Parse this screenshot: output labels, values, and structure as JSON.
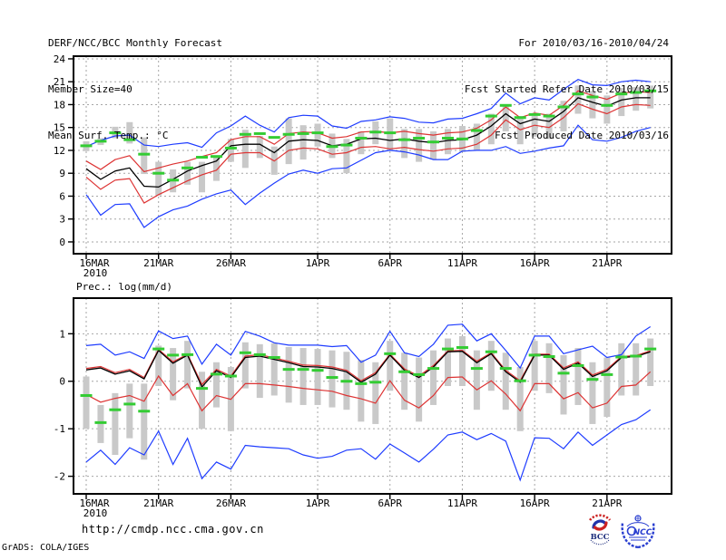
{
  "header": {
    "title": "DERF/NCC/BCC Monthly Forecast",
    "member_size": "Member Size=40",
    "valid_range": "For 2010/03/16-2010/04/24",
    "refer_date": "Fcst Started Refer Date 2010/03/15",
    "produced_date": "Fcst Produced Date 2010/03/16"
  },
  "footer": {
    "url": "http://cmdp.ncc.cma.gov.cn",
    "credit": "GrADS: COLA/IGES",
    "bcc_label": "BCC",
    "ncc_label": "NCC"
  },
  "colors": {
    "extreme_line": "#1e3cff",
    "quartile_line": "#dd3333",
    "mean_line": "#000000",
    "obs_dash": "#33cc33",
    "spread_bar": "#c9c9c9",
    "grid": "#a6a6a6",
    "frame": "#000000"
  },
  "chart_data": [
    {
      "type": "line",
      "title": "Mean Surf. Temp.: °C",
      "start_date": "16MAR2010",
      "ylim": [
        -1.55,
        24.35
      ],
      "y_ticks": [
        0,
        3,
        6,
        9,
        12,
        15,
        18,
        21,
        24
      ],
      "x_ticks": [
        {
          "day": 1,
          "label": "16MAR",
          "sub": "2010"
        },
        {
          "day": 6,
          "label": "21MAR"
        },
        {
          "day": 11,
          "label": "26MAR"
        },
        {
          "day": 17,
          "label": "1APR"
        },
        {
          "day": 22,
          "label": "6APR"
        },
        {
          "day": 27,
          "label": "11APR"
        },
        {
          "day": 32,
          "label": "16APR"
        },
        {
          "day": 37,
          "label": "21APR"
        }
      ],
      "n_days": 40,
      "series": [
        {
          "name": "ensemble-max",
          "color": "#1e3cff",
          "values": [
            12.5,
            13.3,
            13.9,
            14.0,
            12.7,
            12.5,
            12.8,
            13.0,
            12.4,
            14.3,
            15.2,
            16.5,
            15.3,
            14.4,
            16.3,
            16.6,
            16.5,
            15.2,
            14.9,
            15.8,
            16.0,
            16.4,
            16.2,
            15.7,
            15.6,
            16.1,
            16.2,
            16.8,
            17.5,
            19.5,
            18.1,
            18.9,
            18.6,
            20.0,
            21.3,
            20.6,
            20.5,
            21.0,
            21.2,
            21.0
          ]
        },
        {
          "name": "ensemble-upper-quartile",
          "color": "#dd3333",
          "values": [
            10.6,
            9.5,
            10.8,
            11.3,
            9.2,
            9.7,
            10.2,
            10.6,
            11.2,
            11.7,
            13.4,
            13.8,
            13.8,
            12.8,
            14.2,
            14.4,
            14.3,
            13.6,
            13.8,
            14.4,
            14.5,
            14.3,
            14.5,
            14.2,
            14.0,
            14.3,
            14.4,
            14.9,
            16.0,
            17.7,
            16.3,
            16.9,
            16.6,
            17.9,
            19.8,
            19.2,
            18.7,
            19.5,
            19.7,
            19.6
          ]
        },
        {
          "name": "ensemble-mean",
          "color": "#000000",
          "values": [
            9.6,
            8.2,
            9.3,
            9.7,
            7.3,
            7.2,
            8.2,
            9.3,
            10.0,
            10.6,
            12.6,
            12.8,
            12.8,
            11.7,
            13.2,
            13.4,
            13.3,
            12.6,
            12.8,
            13.5,
            13.6,
            13.3,
            13.5,
            13.2,
            13.0,
            13.3,
            13.4,
            14.0,
            15.2,
            16.8,
            15.5,
            16.1,
            15.8,
            17.1,
            18.9,
            18.3,
            17.8,
            18.6,
            18.9,
            18.9
          ]
        },
        {
          "name": "ensemble-lower-quartile",
          "color": "#dd3333",
          "values": [
            8.5,
            6.9,
            8.1,
            8.3,
            5.1,
            6.2,
            7.1,
            8.0,
            8.8,
            9.4,
            11.5,
            11.7,
            11.7,
            10.6,
            12.0,
            12.3,
            12.2,
            11.5,
            11.7,
            12.4,
            12.5,
            12.2,
            12.4,
            12.1,
            11.9,
            12.2,
            12.3,
            12.8,
            14.0,
            16.0,
            14.7,
            15.3,
            15.0,
            16.3,
            18.1,
            17.4,
            16.8,
            17.7,
            18.0,
            17.9
          ]
        },
        {
          "name": "ensemble-min",
          "color": "#1e3cff",
          "values": [
            6.2,
            3.5,
            4.9,
            5.0,
            1.9,
            3.3,
            4.2,
            4.7,
            5.6,
            6.3,
            6.8,
            4.9,
            6.4,
            7.7,
            8.9,
            9.4,
            9.0,
            9.6,
            9.7,
            10.7,
            11.7,
            12.0,
            11.8,
            11.4,
            10.8,
            10.8,
            11.9,
            12.0,
            12.0,
            12.5,
            11.6,
            11.9,
            12.3,
            12.6,
            15.3,
            13.4,
            13.2,
            13.7,
            14.5,
            15.0
          ]
        }
      ],
      "spread_bars": {
        "name": "member-spread",
        "color": "#c9c9c9",
        "lo": [
          11.9,
          12.7,
          13.6,
          12.9,
          8.9,
          6.1,
          6.5,
          7.5,
          6.5,
          8.0,
          10.5,
          9.7,
          11.0,
          8.8,
          10.2,
          10.8,
          12.5,
          11.0,
          9.0,
          11.5,
          12.8,
          12.0,
          11.0,
          10.5,
          10.8,
          11.5,
          11.8,
          12.0,
          12.8,
          14.5,
          12.8,
          13.8,
          13.5,
          14.5,
          16.8,
          16.2,
          15.5,
          16.5,
          17.2,
          17.5
        ],
        "hi": [
          13.2,
          13.6,
          15.1,
          15.7,
          13.7,
          10.5,
          9.5,
          10.5,
          10.5,
          11.3,
          13.5,
          14.7,
          13.9,
          12.5,
          16.2,
          15.3,
          15.5,
          14.2,
          13.5,
          14.5,
          15.8,
          16.2,
          14.8,
          14.8,
          14.5,
          14.8,
          15.2,
          15.5,
          16.8,
          17.8,
          16.5,
          16.5,
          16.8,
          18.5,
          20.5,
          19.8,
          19.2,
          20.2,
          20.3,
          20.5
        ]
      },
      "obs_dashes": {
        "name": "observation",
        "color": "#33cc33",
        "values": [
          12.6,
          13.2,
          14.3,
          13.4,
          11.5,
          9.0,
          8.1,
          9.7,
          11.1,
          11.2,
          12.3,
          14.1,
          14.2,
          13.7,
          14.1,
          14.2,
          14.3,
          12.5,
          12.7,
          13.6,
          14.4,
          14.3,
          13.4,
          13.6,
          13.1,
          13.6,
          13.5,
          14.6,
          16.5,
          17.9,
          16.3,
          16.7,
          16.5,
          17.7,
          19.4,
          19.0,
          17.9,
          19.4,
          19.6,
          19.8
        ]
      }
    },
    {
      "type": "line",
      "title": "Prec.: log(mm/d)",
      "start_date": "16MAR2010",
      "ylim": [
        -2.37,
        1.75
      ],
      "y_ticks": [
        -2,
        -1,
        0,
        1
      ],
      "x_ticks": [
        {
          "day": 1,
          "label": "16MAR",
          "sub": "2010"
        },
        {
          "day": 6,
          "label": "21MAR"
        },
        {
          "day": 11,
          "label": "26MAR"
        },
        {
          "day": 17,
          "label": "1APR"
        },
        {
          "day": 22,
          "label": "6APR"
        },
        {
          "day": 27,
          "label": "11APR"
        },
        {
          "day": 32,
          "label": "16APR"
        },
        {
          "day": 37,
          "label": "21APR"
        }
      ],
      "n_days": 40,
      "series": [
        {
          "name": "ensemble-max",
          "color": "#1e3cff",
          "values": [
            0.75,
            0.78,
            0.55,
            0.62,
            0.48,
            1.06,
            0.9,
            0.95,
            0.36,
            0.78,
            0.55,
            1.05,
            0.95,
            0.81,
            0.76,
            0.76,
            0.76,
            0.73,
            0.75,
            0.4,
            0.55,
            1.05,
            0.6,
            0.52,
            0.78,
            1.18,
            1.2,
            0.85,
            1.0,
            0.65,
            0.28,
            0.95,
            0.95,
            0.58,
            0.66,
            0.74,
            0.5,
            0.56,
            0.95,
            1.15
          ]
        },
        {
          "name": "ensemble-upper-quartile",
          "color": "#dd3333",
          "values": [
            0.27,
            0.31,
            0.18,
            0.25,
            0.08,
            0.67,
            0.41,
            0.57,
            -0.07,
            0.25,
            0.11,
            0.53,
            0.56,
            0.49,
            0.42,
            0.34,
            0.33,
            0.3,
            0.23,
            0.01,
            0.18,
            0.57,
            0.26,
            0.11,
            0.33,
            0.64,
            0.65,
            0.42,
            0.6,
            0.23,
            0.01,
            0.57,
            0.57,
            0.28,
            0.41,
            0.13,
            0.25,
            0.52,
            0.54,
            0.64
          ]
        },
        {
          "name": "ensemble-mean",
          "color": "#000000",
          "values": [
            0.24,
            0.28,
            0.15,
            0.22,
            0.05,
            0.65,
            0.38,
            0.55,
            -0.12,
            0.22,
            0.08,
            0.5,
            0.53,
            0.46,
            0.39,
            0.31,
            0.3,
            0.27,
            0.2,
            -0.02,
            0.15,
            0.55,
            0.23,
            0.08,
            0.3,
            0.62,
            0.63,
            0.39,
            0.58,
            0.2,
            -0.02,
            0.55,
            0.55,
            0.25,
            0.38,
            0.1,
            0.22,
            0.5,
            0.52,
            0.62
          ]
        },
        {
          "name": "ensemble-lower-quartile",
          "color": "#dd3333",
          "values": [
            -0.28,
            -0.44,
            -0.36,
            -0.3,
            -0.42,
            0.11,
            -0.3,
            -0.05,
            -0.62,
            -0.3,
            -0.38,
            -0.05,
            -0.05,
            -0.08,
            -0.11,
            -0.15,
            -0.18,
            -0.21,
            -0.3,
            -0.37,
            -0.46,
            0.01,
            -0.4,
            -0.56,
            -0.3,
            0.08,
            0.09,
            -0.18,
            0.01,
            -0.27,
            -0.62,
            -0.05,
            -0.05,
            -0.37,
            -0.24,
            -0.56,
            -0.46,
            -0.11,
            -0.08,
            0.2
          ]
        },
        {
          "name": "ensemble-min",
          "color": "#1e3cff",
          "values": [
            -1.7,
            -1.45,
            -1.75,
            -1.4,
            -1.55,
            -1.05,
            -1.75,
            -1.2,
            -2.05,
            -1.7,
            -1.85,
            -1.35,
            -1.38,
            -1.4,
            -1.42,
            -1.55,
            -1.62,
            -1.58,
            -1.45,
            -1.42,
            -1.64,
            -1.32,
            -1.51,
            -1.7,
            -1.43,
            -1.13,
            -1.07,
            -1.23,
            -1.1,
            -1.26,
            -2.08,
            -1.19,
            -1.2,
            -1.42,
            -1.07,
            -1.35,
            -1.13,
            -0.91,
            -0.81,
            -0.6
          ]
        }
      ],
      "spread_bars": {
        "name": "member-spread",
        "color": "#c9c9c9",
        "lo": [
          -1.0,
          -1.3,
          -1.55,
          -1.2,
          -1.65,
          -0.1,
          -0.4,
          -0.15,
          -1.0,
          -0.55,
          -1.05,
          -0.15,
          -0.35,
          -0.3,
          -0.45,
          -0.5,
          -0.5,
          -0.55,
          -0.6,
          -0.85,
          -0.9,
          -0.2,
          -0.6,
          -0.85,
          -0.5,
          -0.1,
          -0.1,
          -0.6,
          -0.2,
          -0.6,
          -1.05,
          -0.2,
          -0.25,
          -0.7,
          -0.5,
          -0.9,
          -0.75,
          -0.3,
          -0.3,
          -0.1
        ],
        "hi": [
          0.1,
          -0.5,
          -0.25,
          -0.05,
          -0.05,
          0.75,
          0.7,
          0.85,
          0.2,
          0.4,
          0.3,
          0.82,
          0.78,
          0.8,
          0.72,
          0.7,
          0.68,
          0.65,
          0.62,
          0.45,
          0.4,
          0.85,
          0.6,
          0.5,
          0.65,
          0.9,
          0.95,
          0.65,
          0.85,
          0.6,
          0.3,
          0.85,
          0.8,
          0.55,
          0.7,
          0.4,
          0.5,
          0.8,
          0.8,
          0.9
        ]
      },
      "obs_dashes": {
        "name": "observation",
        "color": "#33cc33",
        "values": [
          -0.3,
          -0.87,
          -0.6,
          -0.48,
          -0.63,
          0.68,
          0.55,
          0.56,
          -0.15,
          0.15,
          0.11,
          0.6,
          0.56,
          0.5,
          0.25,
          0.25,
          0.23,
          0.08,
          0.0,
          -0.05,
          -0.02,
          0.58,
          0.2,
          0.14,
          0.27,
          0.68,
          0.71,
          0.27,
          0.62,
          0.27,
          0.01,
          0.55,
          0.52,
          0.17,
          0.33,
          0.04,
          0.14,
          0.51,
          0.53,
          0.68
        ]
      }
    }
  ]
}
